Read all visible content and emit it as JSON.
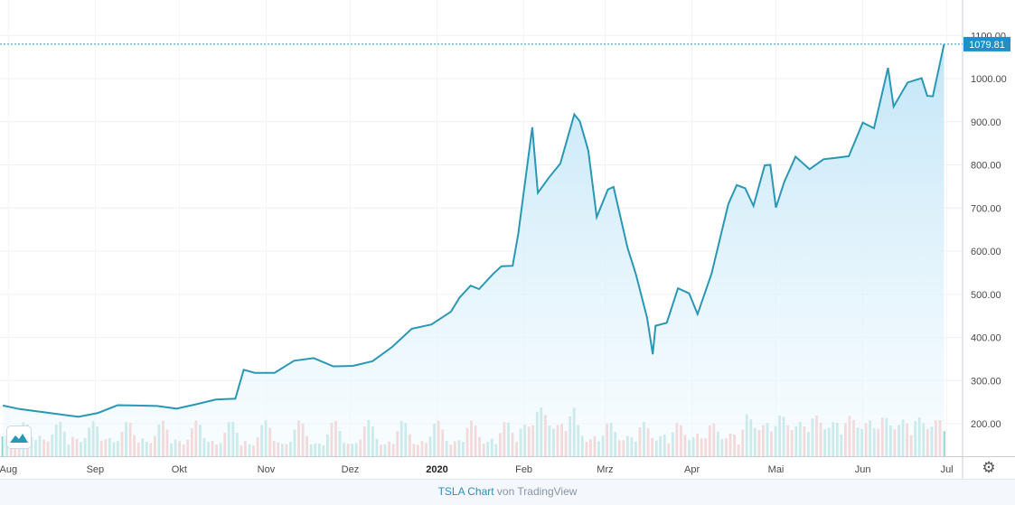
{
  "chart_data": {
    "type": "line",
    "symbol": "TSLA",
    "yaxis": {
      "ticks": [
        "200.00",
        "300.00",
        "400.00",
        "500.00",
        "600.00",
        "700.00",
        "800.00",
        "900.00",
        "1000.00",
        "1100.00"
      ],
      "min": 130,
      "max": 1145
    },
    "xaxis": {
      "ticks": [
        "Aug",
        "Sep",
        "Okt",
        "Nov",
        "Dez",
        "2020",
        "Feb",
        "Mrz",
        "Apr",
        "Mai",
        "Jun",
        "Jul"
      ]
    },
    "last_price": "1079.81",
    "grid": true,
    "colors": {
      "line": "#2a98b5",
      "fill_top": "#bfe4f7",
      "fill_bottom": "#f4fbff",
      "volume_up": "#8ed1cb",
      "volume_down": "#f2a8a2",
      "price_label": "#1e8fc9"
    },
    "series": [
      {
        "values": [
          [
            "2019-07-30",
            242
          ],
          [
            "2019-08-05",
            234
          ],
          [
            "2019-08-12",
            228
          ],
          [
            "2019-08-19",
            222
          ],
          [
            "2019-08-26",
            216
          ],
          [
            "2019-09-02",
            225
          ],
          [
            "2019-09-09",
            243
          ],
          [
            "2019-09-16",
            242
          ],
          [
            "2019-09-23",
            241
          ],
          [
            "2019-09-30",
            235
          ],
          [
            "2019-10-07",
            245
          ],
          [
            "2019-10-14",
            256
          ],
          [
            "2019-10-21",
            258
          ],
          [
            "2019-10-24",
            325
          ],
          [
            "2019-10-28",
            318
          ],
          [
            "2019-11-04",
            318
          ],
          [
            "2019-11-11",
            346
          ],
          [
            "2019-11-18",
            352
          ],
          [
            "2019-11-25",
            333
          ],
          [
            "2019-12-02",
            334
          ],
          [
            "2019-12-09",
            345
          ],
          [
            "2019-12-16",
            378
          ],
          [
            "2019-12-23",
            420
          ],
          [
            "2019-12-30",
            430
          ],
          [
            "2020-01-06",
            460
          ],
          [
            "2020-01-09",
            492
          ],
          [
            "2020-01-13",
            520
          ],
          [
            "2020-01-16",
            512
          ],
          [
            "2020-01-21",
            547
          ],
          [
            "2020-01-24",
            565
          ],
          [
            "2020-01-28",
            566
          ],
          [
            "2020-01-30",
            640
          ],
          [
            "2020-02-04",
            887
          ],
          [
            "2020-02-06",
            735
          ],
          [
            "2020-02-10",
            771
          ],
          [
            "2020-02-14",
            803
          ],
          [
            "2020-02-19",
            917
          ],
          [
            "2020-02-21",
            901
          ],
          [
            "2020-02-24",
            833
          ],
          [
            "2020-02-27",
            679
          ],
          [
            "2020-03-02",
            743
          ],
          [
            "2020-03-04",
            749
          ],
          [
            "2020-03-09",
            608
          ],
          [
            "2020-03-12",
            546
          ],
          [
            "2020-03-16",
            445
          ],
          [
            "2020-03-18",
            361
          ],
          [
            "2020-03-19",
            427
          ],
          [
            "2020-03-23",
            434
          ],
          [
            "2020-03-27",
            514
          ],
          [
            "2020-03-31",
            502
          ],
          [
            "2020-04-03",
            454
          ],
          [
            "2020-04-08",
            548
          ],
          [
            "2020-04-14",
            709
          ],
          [
            "2020-04-17",
            753
          ],
          [
            "2020-04-20",
            746
          ],
          [
            "2020-04-23",
            705
          ],
          [
            "2020-04-27",
            799
          ],
          [
            "2020-04-29",
            800
          ],
          [
            "2020-05-01",
            701
          ],
          [
            "2020-05-04",
            761
          ],
          [
            "2020-05-08",
            819
          ],
          [
            "2020-05-13",
            790
          ],
          [
            "2020-05-18",
            813
          ],
          [
            "2020-05-22",
            816
          ],
          [
            "2020-05-27",
            820
          ],
          [
            "2020-06-01",
            898
          ],
          [
            "2020-06-05",
            885
          ],
          [
            "2020-06-10",
            1025
          ],
          [
            "2020-06-12",
            935
          ],
          [
            "2020-06-17",
            991
          ],
          [
            "2020-06-22",
            1001
          ],
          [
            "2020-06-24",
            960
          ],
          [
            "2020-06-26",
            959
          ],
          [
            "2020-06-30",
            1079.81
          ]
        ]
      }
    ]
  },
  "footer": {
    "symbol_link": "TSLA Chart",
    "by_text": " von TradingView"
  }
}
